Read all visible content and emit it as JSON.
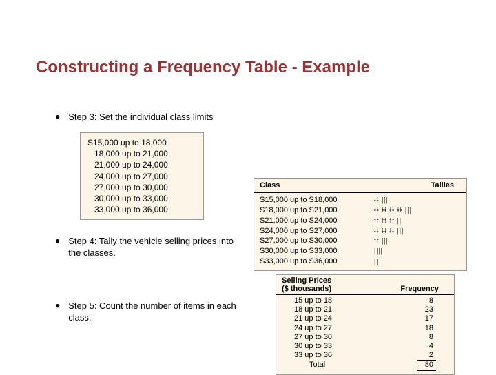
{
  "colors": {
    "title": "#993333",
    "box_bg": "#fdf6e8",
    "box_border": "#999999",
    "text": "#000000"
  },
  "title": "Constructing a Frequency Table - Example",
  "steps": {
    "s3": "Step 3: Set the individual class limits",
    "s4": "Step 4: Tally the vehicle selling prices into the classes.",
    "s5": "Step 5: Count the number of items in each class."
  },
  "limits": {
    "lines": [
      "S15,000 up to 18,000",
      "18,000 up to 21,000",
      "21,000 up to 24,000",
      "24,000 up to 27,000",
      "27,000 up to 30,000",
      "30,000 up to 33,000",
      "33,000 up to 36,000"
    ]
  },
  "tally": {
    "header_class": "Class",
    "header_tallies": "Tallies",
    "rows": [
      {
        "class": "S15,000 up to S18,000",
        "tallies": "ǂǂ |||"
      },
      {
        "class": "S18,000 up to S21,000",
        "tallies": "ǂǂ ǂǂ ǂǂ ǂǂ |||"
      },
      {
        "class": "S21,000 up to S24,000",
        "tallies": "ǂǂ ǂǂ ǂǂ ||"
      },
      {
        "class": "S24,000 up to S27,000",
        "tallies": "ǂǂ ǂǂ ǂǂ |||"
      },
      {
        "class": "S27,000 up to S30,000",
        "tallies": "ǂǂ |||"
      },
      {
        "class": "S30,000 up to S33,000",
        "tallies": "||||"
      },
      {
        "class": "S33,000 up to S36,000",
        "tallies": "||"
      }
    ]
  },
  "freq": {
    "header_prices_l1": "Selling Prices",
    "header_prices_l2": "($ thousands)",
    "header_freq": "Frequency",
    "rows": [
      {
        "class": "15 up to 18",
        "freq": "8"
      },
      {
        "class": "18 up to 21",
        "freq": "23"
      },
      {
        "class": "21 up to 24",
        "freq": "17"
      },
      {
        "class": "24 up to 27",
        "freq": "18"
      },
      {
        "class": "27 up to 30",
        "freq": "8"
      },
      {
        "class": "30 up to 33",
        "freq": "4"
      },
      {
        "class": "33 up to 36",
        "freq": "2"
      }
    ],
    "total_label": "Total",
    "total_value": "80"
  }
}
